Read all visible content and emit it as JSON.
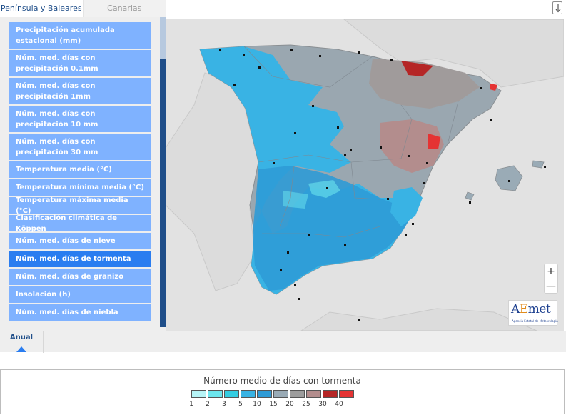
{
  "tabs": {
    "peninsula": "Península y Baleares",
    "canarias": "Canarias"
  },
  "menu": [
    {
      "label": "Precipitación acumulada estacional (mm)",
      "lines": 2,
      "active": false
    },
    {
      "label": "Núm. med. días con precipitación 0.1mm",
      "lines": 2,
      "active": false
    },
    {
      "label": "Núm. med. días con precipitación 1mm",
      "lines": 2,
      "active": false
    },
    {
      "label": "Núm. med. días con precipitación 10 mm",
      "lines": 2,
      "active": false
    },
    {
      "label": "Núm. med. días con precipitación 30 mm",
      "lines": 2,
      "active": false
    },
    {
      "label": "Temperatura media (°C)",
      "lines": 1,
      "active": false
    },
    {
      "label": "Temperatura mínima media (°C)",
      "lines": 1,
      "active": false
    },
    {
      "label": "Temperatura máxima media (°C)",
      "lines": 1,
      "active": false
    },
    {
      "label": "Clasificación climática de Köppen",
      "lines": 1,
      "active": false
    },
    {
      "label": "Núm. med. días de nieve",
      "lines": 1,
      "active": false
    },
    {
      "label": "Núm. med. días de tormenta",
      "lines": 1,
      "active": true
    },
    {
      "label": "Núm. med. días de granizo",
      "lines": 1,
      "active": false
    },
    {
      "label": "Insolación (h)",
      "lines": 1,
      "active": false
    },
    {
      "label": "Núm. med. días de niebla",
      "lines": 1,
      "active": false
    }
  ],
  "zoom": {
    "in": "+",
    "out": "—"
  },
  "logo": {
    "brand_a": "A",
    "brand_e": "E",
    "brand_rest": "met",
    "subtitle": "Agencia Estatal de Meteorología"
  },
  "period": {
    "label": "Anual"
  },
  "legend": {
    "title": "Número medio de días con tormenta",
    "classes": [
      {
        "label": "1",
        "color": "#b6f4f6"
      },
      {
        "label": "2",
        "color": "#6de6ee"
      },
      {
        "label": "3",
        "color": "#34cde2"
      },
      {
        "label": "5",
        "color": "#39b3e4"
      },
      {
        "label": "10",
        "color": "#2f9bd6"
      },
      {
        "label": "15",
        "color": "#9aabb6"
      },
      {
        "label": "20",
        "color": "#9d9d9d"
      },
      {
        "label": "25",
        "color": "#b38d8d"
      },
      {
        "label": "30",
        "color": "#b52626"
      },
      {
        "label": "40",
        "color": "#e53333"
      }
    ]
  },
  "colors": {
    "accent": "#2a7df0",
    "menu_item": "#7fb2ff",
    "nav_dark": "#1f4e89"
  },
  "icons": {
    "download": "download-icon",
    "caret": "caret-up-icon"
  }
}
